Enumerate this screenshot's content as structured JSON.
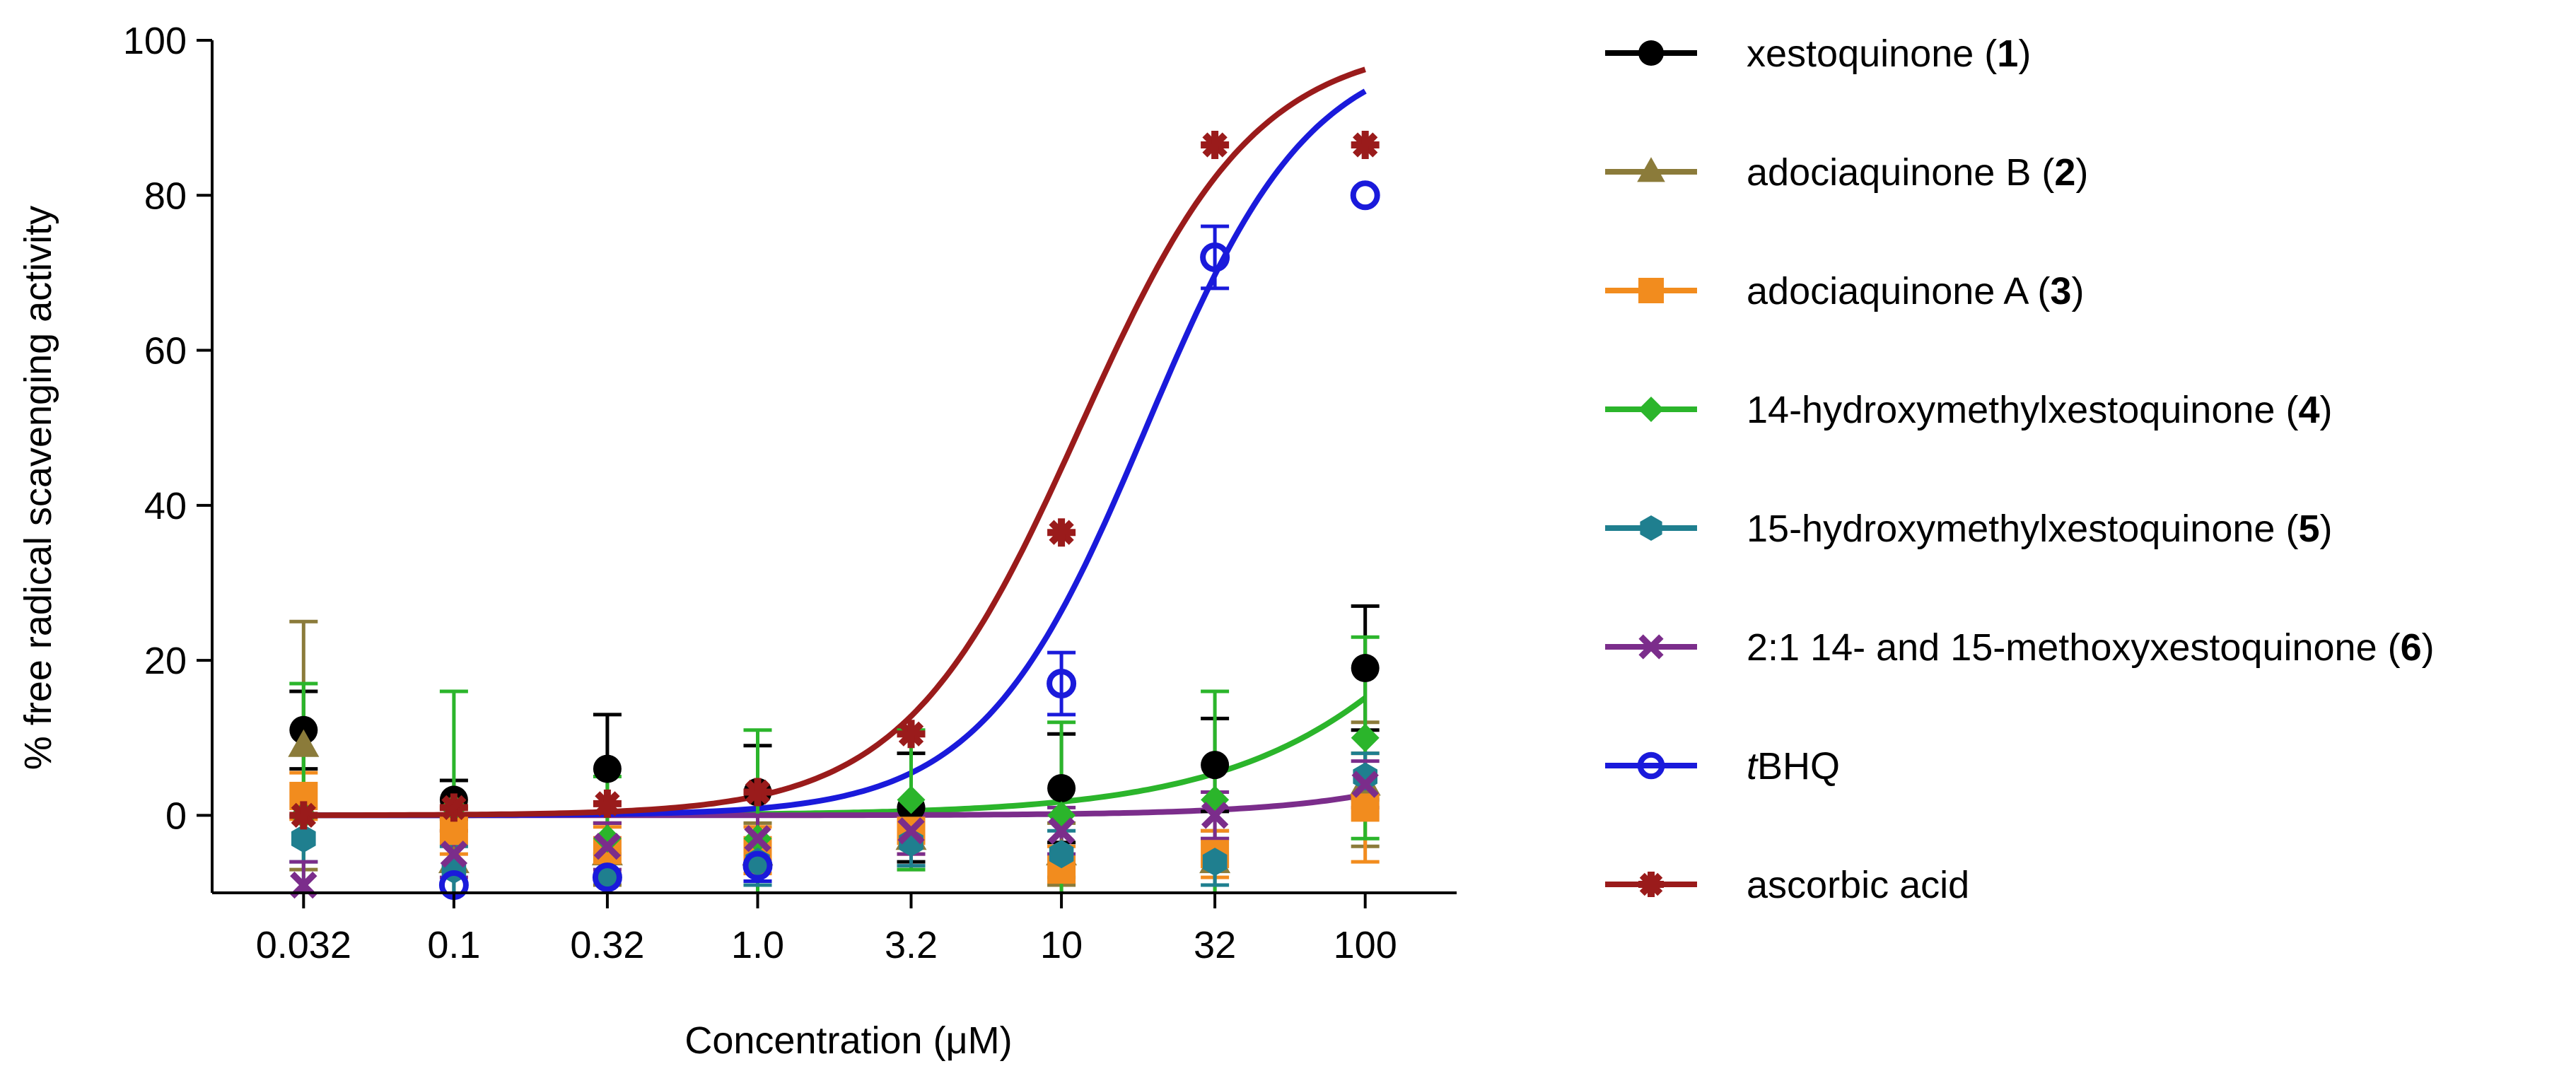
{
  "chart_data": {
    "type": "scatter",
    "title": "",
    "xlabel": "Concentration (μM)",
    "ylabel": "% free radical scavenging activity",
    "x_scale": "log",
    "x_ticks": [
      0.032,
      0.1,
      0.32,
      1.0,
      3.2,
      10,
      32,
      100
    ],
    "x_tick_labels": [
      "0.032",
      "0.1",
      "0.32",
      "1.0",
      "3.2",
      "10",
      "32",
      "100"
    ],
    "ylim": [
      -10,
      100
    ],
    "y_ticks": [
      0,
      20,
      40,
      60,
      80,
      100
    ],
    "y_tick_labels": [
      "0",
      "20",
      "40",
      "60",
      "80",
      "100"
    ],
    "legend_position": "right",
    "series": [
      {
        "name": "xestoquinone",
        "label_number": "1",
        "color": "#000000",
        "marker": "circle",
        "values": [
          11,
          2,
          6,
          3,
          1,
          3.5,
          6.5,
          19
        ],
        "errors": [
          5,
          2.5,
          7,
          6,
          7,
          7,
          6,
          8
        ],
        "curve": null
      },
      {
        "name": "adociaquinone B",
        "label_number": "2",
        "color": "#8B7B3A",
        "marker": "triangle",
        "values": [
          9,
          -6,
          -5,
          -5,
          -3,
          -5,
          -6,
          4
        ],
        "errors": [
          16,
          4,
          4,
          4,
          4,
          4,
          4,
          8
        ],
        "curve": null
      },
      {
        "name": "adociaquinone A",
        "label_number": "3",
        "color": "#F28C1E",
        "marker": "square",
        "values": [
          2.5,
          -2,
          -4.5,
          -4.5,
          -2,
          -7,
          -5,
          1
        ],
        "errors": [
          3,
          3,
          3,
          3,
          3,
          3,
          3,
          7
        ],
        "curve": null
      },
      {
        "name": "14-hydroxymethylxestoquinone",
        "label_number": "4",
        "color": "#2BB52B",
        "marker": "diamond",
        "values": [
          0,
          1,
          -3,
          -3,
          2,
          0,
          2,
          10
        ],
        "errors": [
          17,
          15,
          8,
          14,
          9,
          12,
          14,
          13
        ],
        "curve": {
          "bottom": 0,
          "top": 100,
          "ec50": 560,
          "hill": 1
        }
      },
      {
        "name": "15-hydroxymethylxestoquinone",
        "label_number": "5",
        "color": "#1F7F8F",
        "marker": "hexagon",
        "values": [
          -3,
          -7,
          -8,
          -6,
          -3.5,
          -5,
          -6,
          5
        ],
        "errors": [
          3,
          3,
          3,
          3,
          3,
          3,
          3,
          3
        ],
        "curve": null
      },
      {
        "name": "2:1 14- and 15-methoxyxestoquinone",
        "label_number": "6",
        "color": "#7B2D8B",
        "marker": "cross",
        "values": [
          -9,
          -5,
          -4,
          -3,
          -2,
          -2,
          0,
          4
        ],
        "errors": [
          3,
          3,
          3,
          3,
          3,
          3,
          3,
          3
        ],
        "curve": {
          "bottom": 0,
          "top": 100,
          "ec50": 2000,
          "hill": 1.2
        }
      },
      {
        "name": "tBHQ",
        "name_italic_prefix": "t",
        "name_rest": "BHQ",
        "label_number": "",
        "color": "#1A1ADB",
        "marker": "open-circle",
        "values": [
          null,
          -9,
          -8,
          -6.5,
          null,
          17,
          72,
          80
        ],
        "errors": [
          0,
          0,
          0,
          2,
          0,
          4,
          4,
          0
        ],
        "curve": {
          "bottom": 0,
          "top": 100,
          "ec50": 19,
          "hill": 1.6
        }
      },
      {
        "name": "ascorbic acid",
        "label_number": "",
        "color": "#9A1B1B",
        "marker": "asterisk",
        "values": [
          0,
          1,
          1.5,
          3,
          10.5,
          36.5,
          86.5,
          86.5
        ],
        "errors": [
          0,
          0,
          0,
          0,
          0,
          0,
          0,
          0
        ],
        "curve": {
          "bottom": 0,
          "top": 100,
          "ec50": 11.5,
          "hill": 1.5
        }
      }
    ]
  }
}
